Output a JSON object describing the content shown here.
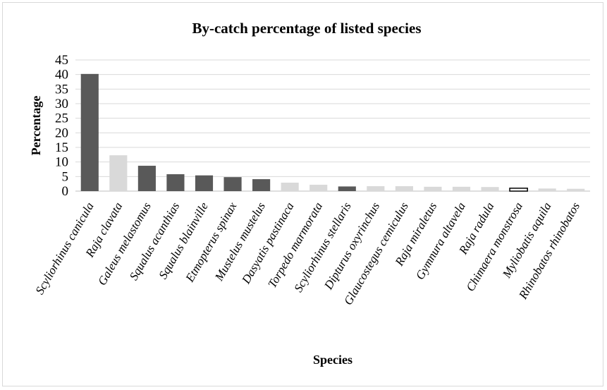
{
  "chart_data": {
    "type": "bar",
    "title": "By-catch percentage of listed species",
    "xlabel": "Species",
    "ylabel": "Percentage",
    "ylim": [
      0,
      45
    ],
    "yticks": [
      0,
      5,
      10,
      15,
      20,
      25,
      30,
      35,
      40,
      45
    ],
    "grid": true,
    "legend": "none",
    "colors": {
      "dark": "#595959",
      "light": "#d9d9d9",
      "white": "#ffffff",
      "grid": "#d9d9d9"
    },
    "categories": [
      "Scyliorhinus canicula",
      "Raja clavata",
      "Galeus melastomus",
      "Squalus acanthias",
      "Squalus blainville",
      "Etmopterus spinax",
      "Mustelus mustelus",
      "Dasyatis pastinaca",
      "Torpedo marmorata",
      "Scyliorhinus stellaris",
      "Dipturus oxyrinchus",
      "Glaucostegus cemiculus",
      "Raja miraletus",
      "Gymnura altavela",
      "Raja radula",
      "Chimaera monstrosa",
      "Myliobatis aquila",
      "Rhinobatos rhinobatos"
    ],
    "values": [
      40.2,
      12.3,
      8.7,
      5.8,
      5.4,
      4.8,
      4.1,
      2.9,
      2.2,
      1.6,
      1.7,
      1.7,
      1.5,
      1.5,
      1.4,
      1.0,
      0.9,
      0.8
    ],
    "bar_colors": [
      "dark",
      "light",
      "dark",
      "dark",
      "dark",
      "dark",
      "dark",
      "light",
      "light",
      "dark",
      "light",
      "light",
      "light",
      "light",
      "light",
      "white",
      "light",
      "light"
    ]
  }
}
